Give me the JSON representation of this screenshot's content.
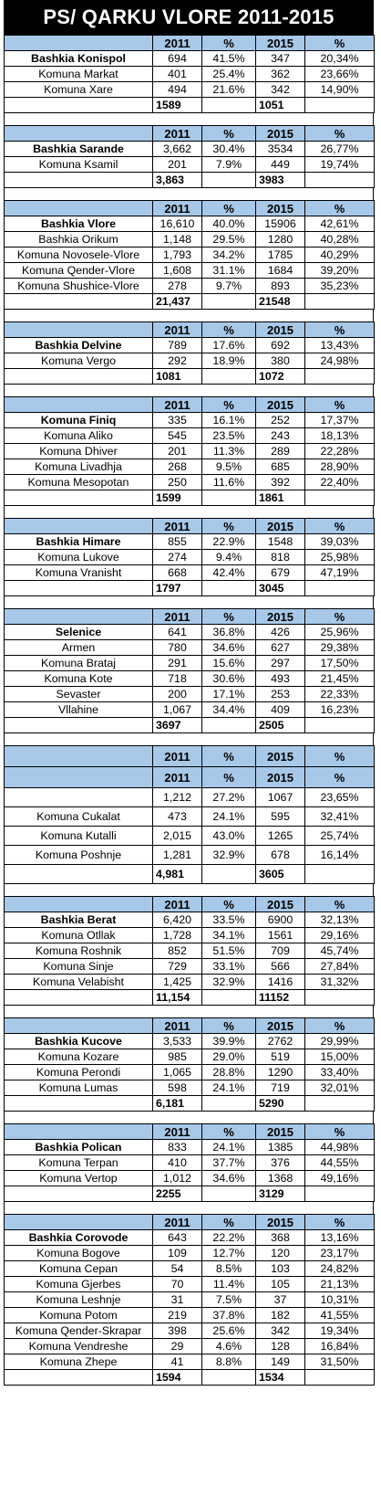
{
  "title": "PS/ QARKU VLORE 2011-2015",
  "headers": {
    "y1": "2011",
    "p1": "%",
    "y2": "2015",
    "p2": "%"
  },
  "blocks": [
    {
      "rows": [
        {
          "name": "Bashkia Konispol",
          "bold": true,
          "v2011": "694",
          "p2011": "41.5%",
          "v2015": "347",
          "p2015": "20,34%"
        },
        {
          "name": "Komuna Markat",
          "v2011": "401",
          "p2011": "25.4%",
          "v2015": "362",
          "p2015": "23,66%"
        },
        {
          "name": "Komuna Xare",
          "v2011": "494",
          "p2011": "21.6%",
          "v2015": "342",
          "p2015": "14,90%"
        }
      ],
      "total2011": "1589",
      "total2015": "1051"
    },
    {
      "rows": [
        {
          "name": "Bashkia Sarande",
          "bold": true,
          "v2011": "3,662",
          "p2011": "30.4%",
          "v2015": "3534",
          "p2015": "26,77%"
        },
        {
          "name": "Komuna Ksamil",
          "v2011": "201",
          "p2011": "7.9%",
          "v2015": "449",
          "p2015": "19,74%"
        }
      ],
      "total2011": "3,863",
      "total2015": "3983"
    },
    {
      "rows": [
        {
          "name": "Bashkia Vlore",
          "bold": true,
          "v2011": "16,610",
          "p2011": "40.0%",
          "v2015": "15906",
          "p2015": "42,61%"
        },
        {
          "name": "Bashkia Orikum",
          "v2011": "1,148",
          "p2011": "29.5%",
          "v2015": "1280",
          "p2015": "40,28%"
        },
        {
          "name": "Komuna Novosele-Vlore",
          "v2011": "1,793",
          "p2011": "34.2%",
          "v2015": "1785",
          "p2015": "40,29%"
        },
        {
          "name": "Komuna Qender-Vlore",
          "v2011": "1,608",
          "p2011": "31.1%",
          "v2015": "1684",
          "p2015": "39,20%"
        },
        {
          "name": "Komuna Shushice-Vlore",
          "v2011": "278",
          "p2011": "9.7%",
          "v2015": "893",
          "p2015": "35,23%"
        }
      ],
      "total2011": "21,437",
      "total2015": "21548"
    },
    {
      "rows": [
        {
          "name": "Bashkia Delvine",
          "bold": true,
          "v2011": "789",
          "p2011": "17.6%",
          "v2015": "692",
          "p2015": "13,43%"
        },
        {
          "name": "Komuna Vergo",
          "v2011": "292",
          "p2011": "18.9%",
          "v2015": "380",
          "p2015": "24,98%"
        }
      ],
      "total2011": "1081",
      "total2015": "1072"
    },
    {
      "rows": [
        {
          "name": "Komuna Finiq",
          "bold": true,
          "v2011": "335",
          "p2011": "16.1%",
          "v2015": "252",
          "p2015": "17,37%"
        },
        {
          "name": "Komuna Aliko",
          "v2011": "545",
          "p2011": "23.5%",
          "v2015": "243",
          "p2015": "18,13%"
        },
        {
          "name": "Komuna Dhiver",
          "v2011": "201",
          "p2011": "11.3%",
          "v2015": "289",
          "p2015": "22,28%"
        },
        {
          "name": "Komuna Livadhja",
          "v2011": "268",
          "p2011": "9.5%",
          "v2015": "685",
          "p2015": "28,90%"
        },
        {
          "name": "Komuna Mesopotan",
          "v2011": "250",
          "p2011": "11.6%",
          "v2015": "392",
          "p2015": "22,40%"
        }
      ],
      "total2011": "1599",
      "total2015": "1861"
    },
    {
      "rows": [
        {
          "name": "Bashkia Himare",
          "bold": true,
          "v2011": "855",
          "p2011": "22.9%",
          "v2015": "1548",
          "p2015": "39,03%"
        },
        {
          "name": "Komuna Lukove",
          "v2011": "274",
          "p2011": "9.4%",
          "v2015": "818",
          "p2015": "25,98%"
        },
        {
          "name": "Komuna  Vranisht",
          "v2011": "668",
          "p2011": "42.4%",
          "v2015": "679",
          "p2015": "47,19%"
        }
      ],
      "total2011": "1797",
      "total2015": "3045"
    },
    {
      "rows": [
        {
          "name": "Selenice",
          "bold": true,
          "v2011": "641",
          "p2011": "36.8%",
          "v2015": "426",
          "p2015": "25,96%"
        },
        {
          "name": "Armen",
          "v2011": "780",
          "p2011": "34.6%",
          "v2015": "627",
          "p2015": "29,38%"
        },
        {
          "name": "Komuna Brataj",
          "v2011": "291",
          "p2011": "15.6%",
          "v2015": "297",
          "p2015": "17,50%"
        },
        {
          "name": "Komuna Kote",
          "v2011": "718",
          "p2011": "30.6%",
          "v2015": "493",
          "p2015": "21,45%"
        },
        {
          "name": "Sevaster",
          "v2011": "200",
          "p2011": "17.1%",
          "v2015": "253",
          "p2015": "22,33%"
        },
        {
          "name": "Vllahine",
          "v2011": "1,067",
          "p2011": "34.4%",
          "v2015": "409",
          "p2015": "16,23%"
        }
      ],
      "total2011": "3697",
      "total2015": "2505"
    },
    {
      "big": true,
      "doubleHeader": true,
      "rows": [
        {
          "name": "",
          "v2011": "1,212",
          "p2011": "27.2%",
          "v2015": "1067",
          "p2015": "23,65%"
        },
        {
          "name": "Komuna Cukalat",
          "v2011": "473",
          "p2011": "24.1%",
          "v2015": "595",
          "p2015": "32,41%"
        },
        {
          "name": "Komuna Kutalli",
          "v2011": "2,015",
          "p2011": "43.0%",
          "v2015": "1265",
          "p2015": "25,74%"
        },
        {
          "name": "Komuna Poshnje",
          "v2011": "1,281",
          "p2011": "32.9%",
          "v2015": "678",
          "p2015": "16,14%"
        }
      ],
      "total2011": "4,981",
      "total2015": "3605"
    },
    {
      "rows": [
        {
          "name": "Bashkia Berat",
          "bold": true,
          "v2011": "6,420",
          "p2011": "33.5%",
          "v2015": "6900",
          "p2015": "32,13%"
        },
        {
          "name": "Komuna Otllak",
          "v2011": "1,728",
          "p2011": "34.1%",
          "v2015": "1561",
          "p2015": "29,16%"
        },
        {
          "name": "Komuna Roshnik",
          "v2011": "852",
          "p2011": "51.5%",
          "v2015": "709",
          "p2015": "45,74%"
        },
        {
          "name": "Komuna Sinje",
          "v2011": "729",
          "p2011": "33.1%",
          "v2015": "566",
          "p2015": "27,84%"
        },
        {
          "name": "Komuna Velabisht",
          "v2011": "1,425",
          "p2011": "32.9%",
          "v2015": "1416",
          "p2015": "31,32%"
        }
      ],
      "total2011": "11,154",
      "total2015": "11152"
    },
    {
      "rows": [
        {
          "name": "Bashkia Kucove",
          "bold": true,
          "v2011": "3,533",
          "p2011": "39.9%",
          "v2015": "2762",
          "p2015": "29,99%"
        },
        {
          "name": "Komuna Kozare",
          "v2011": "985",
          "p2011": "29.0%",
          "v2015": "519",
          "p2015": "15,00%"
        },
        {
          "name": "Komuna Perondi",
          "v2011": "1,065",
          "p2011": "28.8%",
          "v2015": "1290",
          "p2015": "33,40%"
        },
        {
          "name": "Komuna Lumas",
          "v2011": "598",
          "p2011": "24.1%",
          "v2015": "719",
          "p2015": "32,01%"
        }
      ],
      "total2011": "6,181",
      "total2015": "5290"
    },
    {
      "rows": [
        {
          "name": "Bashkia Polican",
          "bold": true,
          "v2011": "833",
          "p2011": "24.1%",
          "v2015": "1385",
          "p2015": "44,98%"
        },
        {
          "name": "Komuna Terpan",
          "v2011": "410",
          "p2011": "37.7%",
          "v2015": "376",
          "p2015": "44,55%"
        },
        {
          "name": "Komuna Vertop",
          "v2011": "1,012",
          "p2011": "34.6%",
          "v2015": "1368",
          "p2015": "49,16%"
        }
      ],
      "total2011": "2255",
      "total2015": "3129"
    },
    {
      "rows": [
        {
          "name": "Bashkia Corovode",
          "bold": true,
          "v2011": "643",
          "p2011": "22.2%",
          "v2015": "368",
          "p2015": "13,16%"
        },
        {
          "name": "Komuna Bogove",
          "v2011": "109",
          "p2011": "12.7%",
          "v2015": "120",
          "p2015": "23,17%"
        },
        {
          "name": "Komuna Cepan",
          "v2011": "54",
          "p2011": "8.5%",
          "v2015": "103",
          "p2015": "24,82%"
        },
        {
          "name": "Komuna Gjerbes",
          "v2011": "70",
          "p2011": "11.4%",
          "v2015": "105",
          "p2015": "21,13%"
        },
        {
          "name": "Komuna Leshnje",
          "v2011": "31",
          "p2011": "7.5%",
          "v2015": "37",
          "p2015": "10,31%"
        },
        {
          "name": "Komuna Potom",
          "v2011": "219",
          "p2011": "37.8%",
          "v2015": "182",
          "p2015": "41,55%"
        },
        {
          "name": "Komuna Qender-Skrapar",
          "v2011": "398",
          "p2011": "25.6%",
          "v2015": "342",
          "p2015": "19,34%"
        },
        {
          "name": "Komuna Vendreshe",
          "v2011": "29",
          "p2011": "4.6%",
          "v2015": "128",
          "p2015": "16,84%"
        },
        {
          "name": "Komuna Zhepe",
          "v2011": "41",
          "p2011": "8.8%",
          "v2015": "149",
          "p2015": "31,50%"
        }
      ],
      "total2011": "1594",
      "total2015": "1534"
    }
  ]
}
